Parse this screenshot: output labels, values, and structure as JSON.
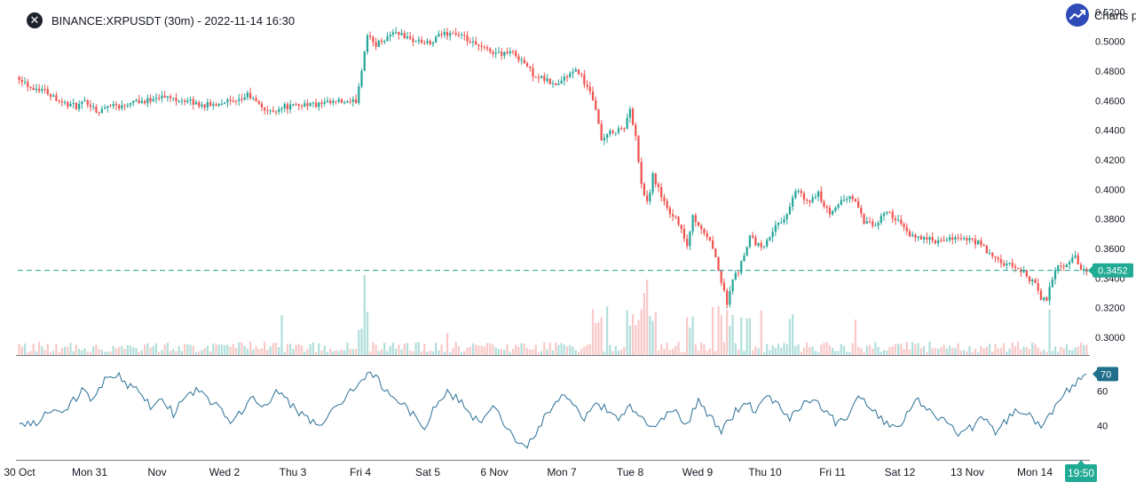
{
  "header": {
    "title": "BINANCE:XRPUSDT (30m) - 2022-11-14 16:30",
    "close_icon": "close-icon"
  },
  "brand": {
    "label": "Charts p",
    "icon": "trend-up-icon"
  },
  "colors": {
    "up": "#26a69a",
    "down": "#ef5350",
    "up_volume": "#b2dfdb",
    "down_volume": "#f8c9c8",
    "rsi_line": "#2a6f97",
    "price_line": "#22ab94",
    "rsi_label": "#1f6f8b",
    "grid_divider": "#787b86"
  },
  "chart_data": [
    {
      "type": "candlestick",
      "title": "BINANCE:XRPUSDT (30m) - 2022-11-14 16:30",
      "x_tick_labels": [
        "30 Oct",
        "Mon 31",
        "Nov",
        "Wed 2",
        "Thu 3",
        "Fri 4",
        "Sat 5",
        "6 Nov",
        "Mon 7",
        "Tue 8",
        "Wed 9",
        "Thu 10",
        "Fri 11",
        "Sat 12",
        "13 Nov",
        "Mon 14"
      ],
      "y_tick_labels": [
        "0.5200",
        "0.5000",
        "0.4800",
        "0.4600",
        "0.4400",
        "0.4200",
        "0.4000",
        "0.3800",
        "0.3600",
        "0.3400",
        "0.3200",
        "0.3000"
      ],
      "ylim": [
        0.288,
        0.522
      ],
      "last_price": 0.3452,
      "last_price_label": "0.3452",
      "countdown_label": "19:50",
      "close_path": [
        [
          0,
          0.476
        ],
        [
          4,
          0.469
        ],
        [
          8,
          0.468
        ],
        [
          12,
          0.463
        ],
        [
          16,
          0.458
        ],
        [
          20,
          0.456
        ],
        [
          24,
          0.459
        ],
        [
          28,
          0.452
        ],
        [
          32,
          0.458
        ],
        [
          36,
          0.456
        ],
        [
          40,
          0.461
        ],
        [
          44,
          0.459
        ],
        [
          48,
          0.463
        ],
        [
          52,
          0.462
        ],
        [
          56,
          0.461
        ],
        [
          60,
          0.459
        ],
        [
          64,
          0.457
        ],
        [
          68,
          0.457
        ],
        [
          72,
          0.46
        ],
        [
          76,
          0.458
        ],
        [
          80,
          0.464
        ],
        [
          84,
          0.457
        ],
        [
          88,
          0.452
        ],
        [
          92,
          0.456
        ],
        [
          96,
          0.456
        ],
        [
          100,
          0.458
        ],
        [
          104,
          0.457
        ],
        [
          108,
          0.458
        ],
        [
          112,
          0.459
        ],
        [
          116,
          0.458
        ],
        [
          118,
          0.46
        ],
        [
          120,
          0.48
        ],
        [
          122,
          0.503
        ],
        [
          125,
          0.498
        ],
        [
          128,
          0.502
        ],
        [
          132,
          0.507
        ],
        [
          136,
          0.502
        ],
        [
          140,
          0.5
        ],
        [
          144,
          0.498
        ],
        [
          148,
          0.505
        ],
        [
          152,
          0.506
        ],
        [
          156,
          0.502
        ],
        [
          160,
          0.497
        ],
        [
          164,
          0.494
        ],
        [
          168,
          0.492
        ],
        [
          172,
          0.493
        ],
        [
          176,
          0.488
        ],
        [
          180,
          0.478
        ],
        [
          184,
          0.474
        ],
        [
          188,
          0.47
        ],
        [
          192,
          0.477
        ],
        [
          196,
          0.48
        ],
        [
          200,
          0.465
        ],
        [
          202,
          0.452
        ],
        [
          204,
          0.433
        ],
        [
          206,
          0.436
        ],
        [
          208,
          0.44
        ],
        [
          212,
          0.441
        ],
        [
          214,
          0.455
        ],
        [
          216,
          0.435
        ],
        [
          218,
          0.402
        ],
        [
          220,
          0.39
        ],
        [
          222,
          0.409
        ],
        [
          224,
          0.4
        ],
        [
          228,
          0.385
        ],
        [
          232,
          0.375
        ],
        [
          234,
          0.36
        ],
        [
          236,
          0.381
        ],
        [
          240,
          0.372
        ],
        [
          244,
          0.355
        ],
        [
          246,
          0.338
        ],
        [
          248,
          0.324
        ],
        [
          250,
          0.338
        ],
        [
          252,
          0.345
        ],
        [
          256,
          0.368
        ],
        [
          260,
          0.36
        ],
        [
          264,
          0.372
        ],
        [
          268,
          0.38
        ],
        [
          272,
          0.4
        ],
        [
          276,
          0.391
        ],
        [
          280,
          0.397
        ],
        [
          284,
          0.382
        ],
        [
          288,
          0.393
        ],
        [
          292,
          0.395
        ],
        [
          296,
          0.378
        ],
        [
          300,
          0.375
        ],
        [
          304,
          0.386
        ],
        [
          308,
          0.378
        ],
        [
          312,
          0.368
        ],
        [
          316,
          0.368
        ],
        [
          320,
          0.365
        ],
        [
          324,
          0.364
        ],
        [
          328,
          0.368
        ],
        [
          332,
          0.366
        ],
        [
          336,
          0.364
        ],
        [
          340,
          0.356
        ],
        [
          344,
          0.35
        ],
        [
          348,
          0.348
        ],
        [
          352,
          0.344
        ],
        [
          356,
          0.335
        ],
        [
          358,
          0.327
        ],
        [
          360,
          0.325
        ],
        [
          362,
          0.34
        ],
        [
          364,
          0.348
        ],
        [
          366,
          0.346
        ],
        [
          368,
          0.351
        ],
        [
          370,
          0.356
        ],
        [
          372,
          0.345
        ],
        [
          374,
          0.345
        ]
      ],
      "series": [
        {
          "name": "price",
          "kind": "candlestick"
        },
        {
          "name": "volume",
          "kind": "bar"
        }
      ]
    },
    {
      "type": "line",
      "series": [
        {
          "kind": "RSI"
        }
      ],
      "y_tick_labels": [
        "60",
        "40"
      ],
      "ylim": [
        20,
        80
      ],
      "last_value": 70,
      "last_value_label": "70",
      "path": [
        [
          0,
          42
        ],
        [
          6,
          40
        ],
        [
          10,
          48
        ],
        [
          14,
          46
        ],
        [
          18,
          53
        ],
        [
          22,
          60
        ],
        [
          26,
          55
        ],
        [
          30,
          66
        ],
        [
          34,
          70
        ],
        [
          38,
          64
        ],
        [
          42,
          60
        ],
        [
          46,
          51
        ],
        [
          50,
          57
        ],
        [
          54,
          47
        ],
        [
          58,
          56
        ],
        [
          62,
          61
        ],
        [
          66,
          55
        ],
        [
          70,
          50
        ],
        [
          74,
          42
        ],
        [
          78,
          49
        ],
        [
          82,
          56
        ],
        [
          86,
          50
        ],
        [
          90,
          60
        ],
        [
          94,
          54
        ],
        [
          98,
          47
        ],
        [
          102,
          43
        ],
        [
          106,
          41
        ],
        [
          110,
          48
        ],
        [
          114,
          56
        ],
        [
          118,
          63
        ],
        [
          122,
          70
        ],
        [
          126,
          66
        ],
        [
          130,
          57
        ],
        [
          134,
          52
        ],
        [
          138,
          47
        ],
        [
          142,
          40
        ],
        [
          146,
          51
        ],
        [
          150,
          60
        ],
        [
          154,
          55
        ],
        [
          158,
          46
        ],
        [
          162,
          42
        ],
        [
          166,
          52
        ],
        [
          170,
          40
        ],
        [
          174,
          32
        ],
        [
          178,
          28
        ],
        [
          182,
          38
        ],
        [
          186,
          50
        ],
        [
          190,
          57
        ],
        [
          194,
          51
        ],
        [
          198,
          44
        ],
        [
          202,
          53
        ],
        [
          206,
          49
        ],
        [
          210,
          42
        ],
        [
          214,
          52
        ],
        [
          218,
          44
        ],
        [
          222,
          38
        ],
        [
          226,
          45
        ],
        [
          230,
          48
        ],
        [
          234,
          40
        ],
        [
          238,
          55
        ],
        [
          242,
          45
        ],
        [
          246,
          37
        ],
        [
          250,
          46
        ],
        [
          254,
          54
        ],
        [
          258,
          49
        ],
        [
          262,
          58
        ],
        [
          266,
          52
        ],
        [
          270,
          45
        ],
        [
          274,
          51
        ],
        [
          278,
          57
        ],
        [
          282,
          49
        ],
        [
          286,
          42
        ],
        [
          290,
          45
        ],
        [
          294,
          57
        ],
        [
          298,
          52
        ],
        [
          302,
          44
        ],
        [
          306,
          40
        ],
        [
          310,
          43
        ],
        [
          314,
          56
        ],
        [
          318,
          51
        ],
        [
          322,
          45
        ],
        [
          326,
          40
        ],
        [
          330,
          35
        ],
        [
          334,
          39
        ],
        [
          338,
          45
        ],
        [
          342,
          37
        ],
        [
          346,
          43
        ],
        [
          350,
          50
        ],
        [
          354,
          46
        ],
        [
          358,
          40
        ],
        [
          362,
          49
        ],
        [
          366,
          58
        ],
        [
          370,
          64
        ],
        [
          374,
          70
        ]
      ]
    }
  ]
}
